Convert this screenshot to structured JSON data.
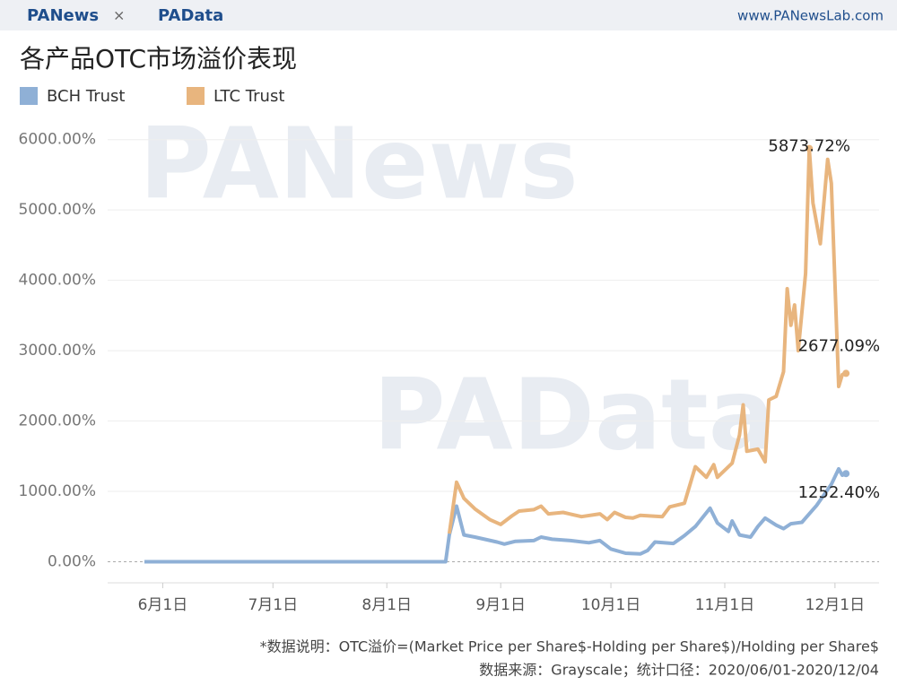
{
  "header": {
    "brand1": "PANews",
    "brand2": "PAData",
    "separator": "×",
    "site": "www.PANewsLab.com"
  },
  "chart_data": {
    "type": "line",
    "title": "各产品OTC市场溢价表现",
    "watermarks": [
      "PANews",
      "PAData"
    ],
    "xlim": [
      "2020-05-17",
      "2020-12-13"
    ],
    "xticks": [
      {
        "value": "2020-06-01",
        "label": "6月1日"
      },
      {
        "value": "2020-07-01",
        "label": "7月1日"
      },
      {
        "value": "2020-08-01",
        "label": "8月1日"
      },
      {
        "value": "2020-09-01",
        "label": "9月1日"
      },
      {
        "value": "2020-10-01",
        "label": "10月1日"
      },
      {
        "value": "2020-11-01",
        "label": "11月1日"
      },
      {
        "value": "2020-12-01",
        "label": "12月1日"
      }
    ],
    "ylim": [
      -300,
      6200
    ],
    "yticks": [
      {
        "value": 0,
        "label": "0.00%"
      },
      {
        "value": 1000,
        "label": "1000.00%"
      },
      {
        "value": 2000,
        "label": "2000.00%"
      },
      {
        "value": 3000,
        "label": "3000.00%"
      },
      {
        "value": 4000,
        "label": "4000.00%"
      },
      {
        "value": 5000,
        "label": "5000.00%"
      },
      {
        "value": 6000,
        "label": "6000.00%"
      }
    ],
    "grid": true,
    "series": [
      {
        "name": "BCH Trust",
        "color": "#8fb0d6",
        "x": [
          "2020-05-27",
          "2020-08-17",
          "2020-08-18",
          "2020-08-20",
          "2020-08-22",
          "2020-08-25",
          "2020-08-31",
          "2020-09-02",
          "2020-09-05",
          "2020-09-10",
          "2020-09-12",
          "2020-09-15",
          "2020-09-20",
          "2020-09-25",
          "2020-09-28",
          "2020-10-01",
          "2020-10-05",
          "2020-10-09",
          "2020-10-11",
          "2020-10-13",
          "2020-10-18",
          "2020-10-21",
          "2020-10-24",
          "2020-10-28",
          "2020-10-30",
          "2020-11-02",
          "2020-11-03",
          "2020-11-05",
          "2020-11-08",
          "2020-11-10",
          "2020-11-12",
          "2020-11-15",
          "2020-11-17",
          "2020-11-19",
          "2020-11-22",
          "2020-11-24",
          "2020-11-26",
          "2020-11-28",
          "2020-11-30",
          "2020-12-02",
          "2020-12-03",
          "2020-12-04"
        ],
        "values": [
          0,
          0,
          380,
          790,
          380,
          350,
          280,
          250,
          290,
          300,
          350,
          320,
          300,
          270,
          300,
          180,
          120,
          110,
          160,
          280,
          260,
          370,
          500,
          760,
          550,
          430,
          580,
          380,
          350,
          500,
          620,
          520,
          470,
          540,
          560,
          680,
          800,
          950,
          1100,
          1320,
          1230,
          1252.4
        ],
        "value_labels": [
          null,
          null,
          null,
          null,
          null,
          null,
          null,
          null,
          null,
          null,
          null,
          null,
          null,
          null,
          null,
          null,
          null,
          null,
          null,
          null,
          null,
          null,
          null,
          null,
          null,
          null,
          null,
          null,
          null,
          null,
          null,
          null,
          null,
          null,
          null,
          null,
          null,
          null,
          null,
          null,
          null,
          "1252.40%"
        ]
      },
      {
        "name": "LTC Trust",
        "color": "#e8b57e",
        "x": [
          "2020-08-18",
          "2020-08-20",
          "2020-08-22",
          "2020-08-25",
          "2020-08-29",
          "2020-09-01",
          "2020-09-04",
          "2020-09-06",
          "2020-09-10",
          "2020-09-12",
          "2020-09-14",
          "2020-09-18",
          "2020-09-23",
          "2020-09-28",
          "2020-09-30",
          "2020-10-02",
          "2020-10-05",
          "2020-10-07",
          "2020-10-09",
          "2020-10-15",
          "2020-10-17",
          "2020-10-21",
          "2020-10-24",
          "2020-10-27",
          "2020-10-29",
          "2020-10-30",
          "2020-11-03",
          "2020-11-05",
          "2020-11-06",
          "2020-11-07",
          "2020-11-10",
          "2020-11-12",
          "2020-11-13",
          "2020-11-15",
          "2020-11-17",
          "2020-11-18",
          "2020-11-19",
          "2020-11-20",
          "2020-11-21",
          "2020-11-23",
          "2020-11-24",
          "2020-11-25",
          "2020-11-27",
          "2020-11-29",
          "2020-11-30",
          "2020-12-02",
          "2020-12-03",
          "2020-12-04"
        ],
        "values": [
          400,
          1130,
          900,
          750,
          600,
          530,
          650,
          720,
          740,
          790,
          680,
          700,
          640,
          680,
          600,
          700,
          630,
          620,
          660,
          640,
          780,
          830,
          1350,
          1200,
          1380,
          1200,
          1400,
          1800,
          2230,
          1570,
          1600,
          1420,
          2300,
          2350,
          2700,
          3880,
          3360,
          3650,
          3000,
          4100,
          5873.72,
          5100,
          4520,
          5720,
          5380,
          2490,
          2660,
          2677.09
        ],
        "value_labels": [
          null,
          null,
          null,
          null,
          null,
          null,
          null,
          null,
          null,
          null,
          null,
          null,
          null,
          null,
          null,
          null,
          null,
          null,
          null,
          null,
          null,
          null,
          null,
          null,
          null,
          null,
          null,
          null,
          null,
          null,
          null,
          null,
          null,
          null,
          null,
          null,
          null,
          null,
          null,
          null,
          "5873.72%",
          null,
          null,
          null,
          null,
          null,
          null,
          "2677.09%"
        ]
      }
    ]
  },
  "footnotes": [
    "*数据说明：OTC溢价=(Market Price per Share$-Holding per Share$)/Holding per Share$",
    "数据来源：Grayscale；统计口径：2020/06/01-2020/12/04"
  ]
}
